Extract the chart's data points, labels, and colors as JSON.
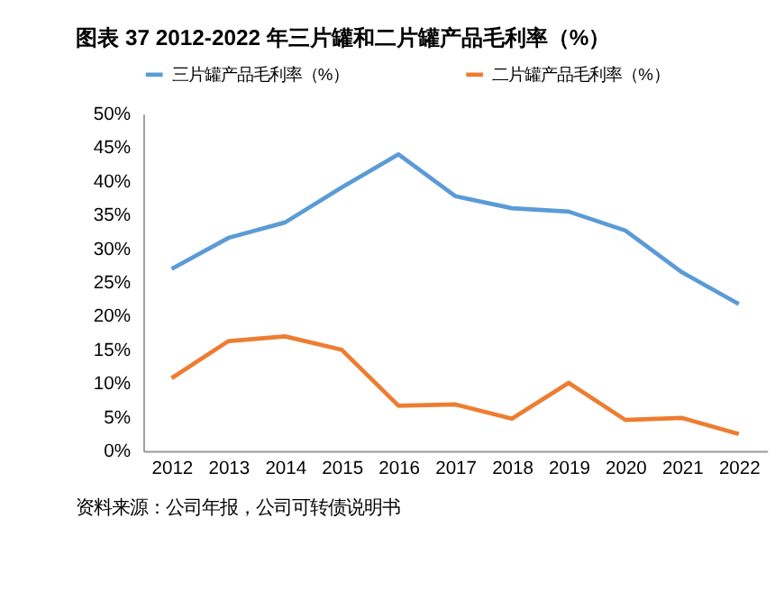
{
  "chart_data": {
    "type": "line",
    "title": "图表 37 2012-2022 年三片罐和二片罐产品毛利率（%）",
    "categories": [
      "2012",
      "2013",
      "2014",
      "2015",
      "2016",
      "2017",
      "2018",
      "2019",
      "2020",
      "2021",
      "2022"
    ],
    "series": [
      {
        "name": "三片罐产品毛利率（%）",
        "color": "#5b9bd5",
        "values": [
          27.0,
          31.6,
          33.9,
          39.1,
          44.0,
          37.8,
          36.0,
          35.5,
          32.7,
          26.5,
          21.8
        ]
      },
      {
        "name": "二片罐产品毛利率（%）",
        "color": "#ed7d31",
        "values": [
          10.8,
          16.3,
          17.0,
          15.0,
          6.7,
          6.9,
          4.8,
          10.1,
          4.6,
          4.9,
          2.5
        ]
      }
    ],
    "ylim": [
      0,
      50
    ],
    "yticks": [
      {
        "value": 0,
        "label": "0%"
      },
      {
        "value": 5,
        "label": "5%"
      },
      {
        "value": 10,
        "label": "10%"
      },
      {
        "value": 15,
        "label": "15%"
      },
      {
        "value": 20,
        "label": "20%"
      },
      {
        "value": 25,
        "label": "25%"
      },
      {
        "value": 30,
        "label": "30%"
      },
      {
        "value": 35,
        "label": "35%"
      },
      {
        "value": 40,
        "label": "40%"
      },
      {
        "value": 45,
        "label": "45%"
      },
      {
        "value": 50,
        "label": "50%"
      }
    ],
    "grid": false,
    "legend": "top",
    "marker": "none",
    "line_style": "solid",
    "annotations": [
      "资料来源：公司年报，公司可转债说明书"
    ]
  }
}
